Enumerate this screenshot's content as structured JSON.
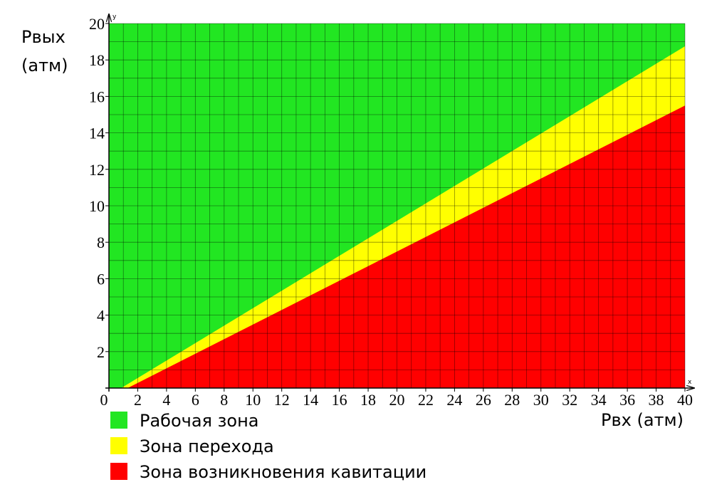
{
  "chart_data": {
    "type": "area",
    "xlabel": "Рвх (атм)",
    "ylabel": [
      "Рвых",
      "(атм)"
    ],
    "x_axis_name": "x",
    "y_axis_name": "y",
    "xlim": [
      0,
      40
    ],
    "ylim": [
      0,
      20
    ],
    "xticks": [
      0,
      2,
      4,
      6,
      8,
      10,
      12,
      14,
      16,
      18,
      20,
      22,
      24,
      26,
      28,
      30,
      32,
      34,
      36,
      38,
      40
    ],
    "yticks": [
      2,
      4,
      6,
      8,
      10,
      12,
      14,
      16,
      18,
      20
    ],
    "grid": true,
    "grid_step": 1,
    "series": [
      {
        "name": "Рабочая зона",
        "color": "#22e622",
        "x": [
          0,
          40
        ],
        "values": [
          20,
          20
        ]
      },
      {
        "name": "Зона перехода",
        "color": "#ffff00",
        "x": [
          0.85,
          40
        ],
        "values": [
          0,
          18.75
        ]
      },
      {
        "name": "Зона возникновения кавитации",
        "color": "#ff0000",
        "x": [
          1.3,
          40
        ],
        "values": [
          0,
          15.5
        ]
      }
    ]
  }
}
